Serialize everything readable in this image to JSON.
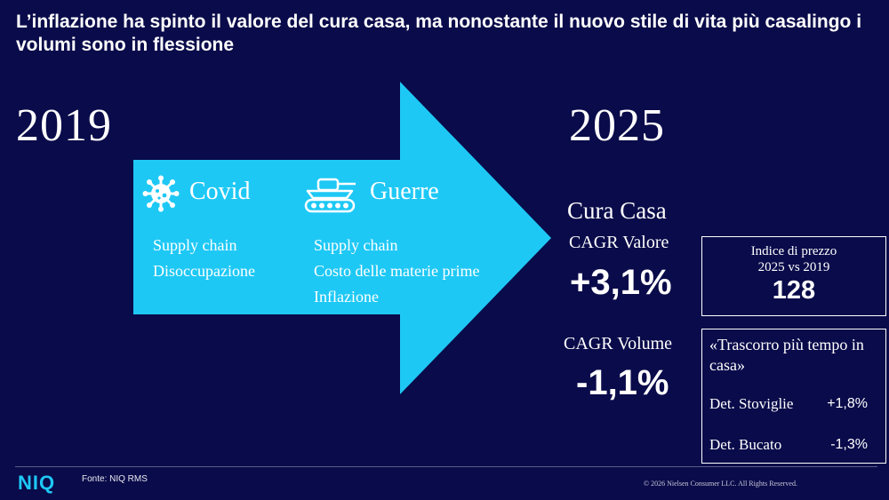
{
  "title": "L’inflazione ha spinto il valore del cura casa, ma nonostante il nuovo stile di vita più casalingo i volumi sono in flessione",
  "year_start": "2019",
  "year_end": "2025",
  "colors": {
    "background": "#0a0b4a",
    "arrow": "#1ec8f5",
    "text": "#ffffff",
    "logo": "#1ec8f5"
  },
  "causes": {
    "covid": {
      "icon": "virus-icon",
      "title": "Covid",
      "items": [
        "Supply chain",
        "Disoccupazione"
      ]
    },
    "guerre": {
      "icon": "tank-icon",
      "title": "Guerre",
      "items": [
        "Supply chain",
        "Costo delle materie prime",
        "Inflazione"
      ]
    }
  },
  "cura_casa": {
    "title": "Cura Casa",
    "valore_label": "CAGR Valore",
    "valore_value": "+3,1%",
    "volume_label": "CAGR Volume",
    "volume_value": "-1,1%"
  },
  "price_index": {
    "label_line1": "Indice di prezzo",
    "label_line2": "2025 vs 2019",
    "value": "128"
  },
  "quote_box": {
    "quote": "«Trascorro più tempo in casa»",
    "rows": [
      {
        "label": "Det. Stoviglie",
        "value": "+1,8%"
      },
      {
        "label": "Det. Bucato",
        "value": "-1,3%"
      }
    ]
  },
  "footer": {
    "logo": "NIQ",
    "source": "Fonte: NIQ RMS",
    "copyright": "© 2026 Nielsen Consumer LLC. All Rights Reserved."
  }
}
